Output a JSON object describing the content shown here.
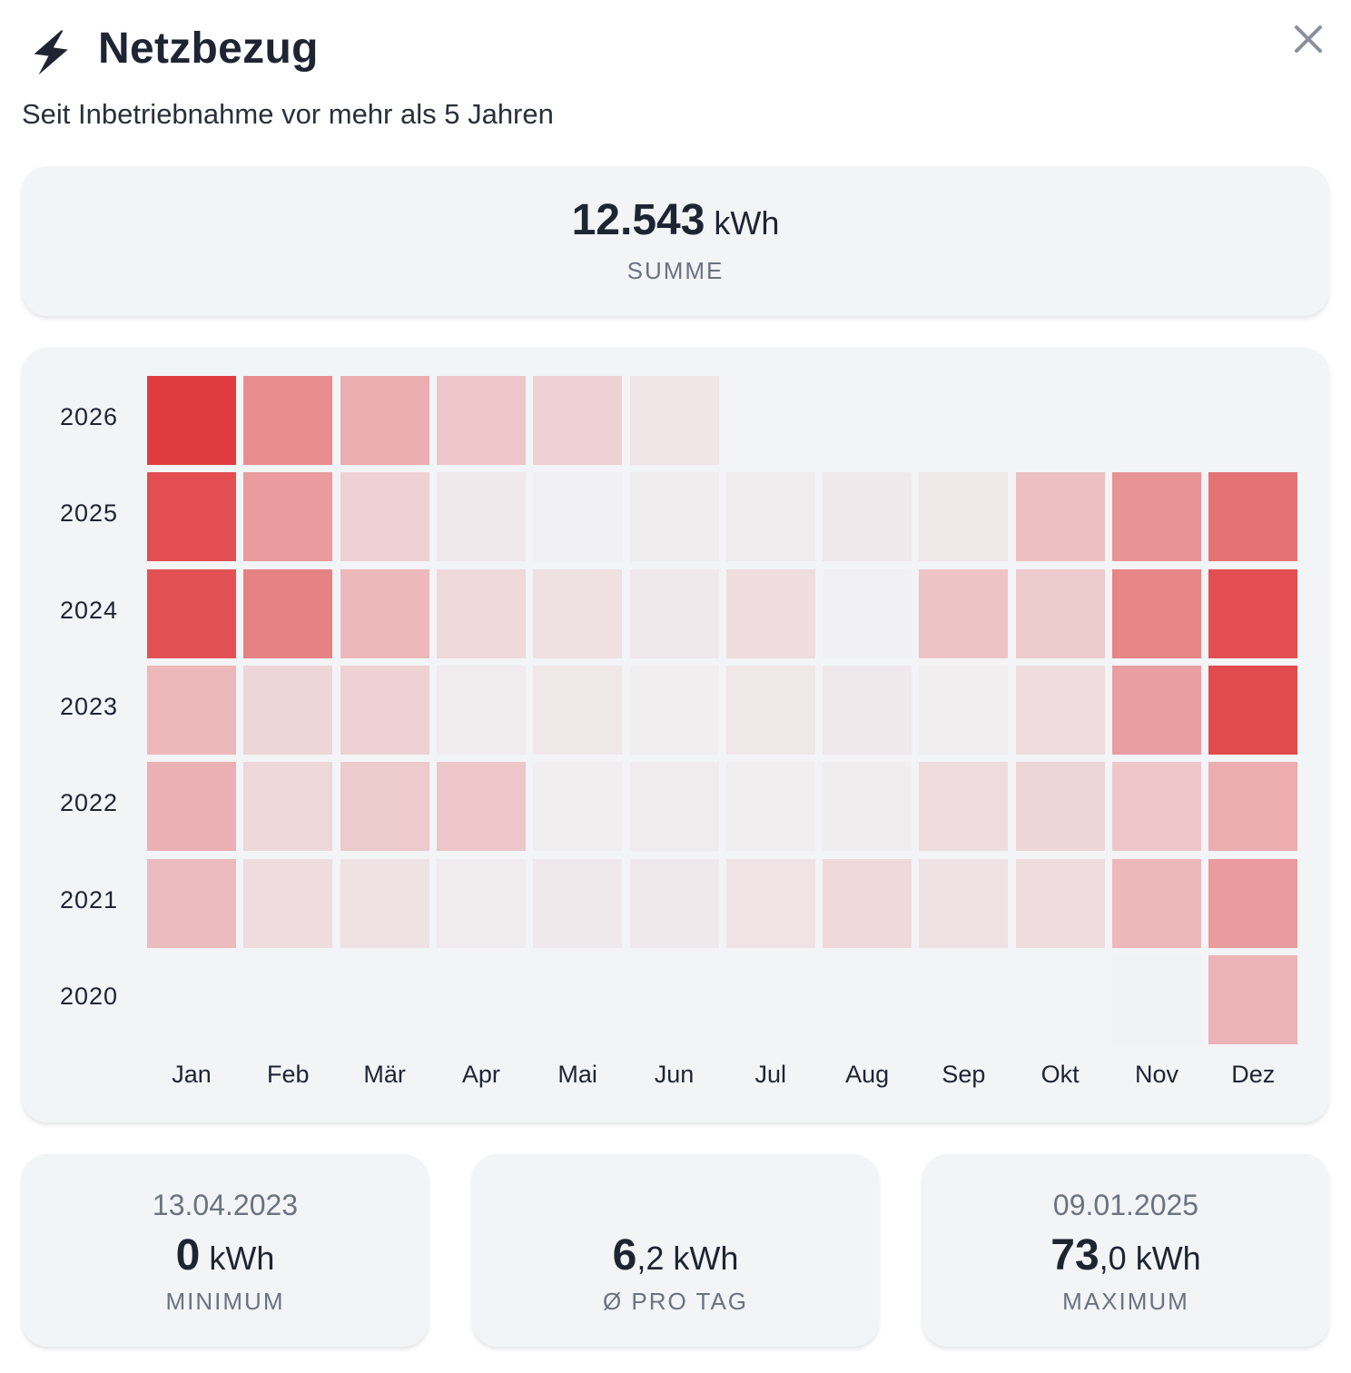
{
  "header": {
    "title": "Netzbezug",
    "subtitle": "Seit Inbetriebnahme vor mehr als 5 Jahren",
    "icon": "lightning-bolt-icon",
    "close_icon": "close-icon"
  },
  "summary": {
    "value_int": "12.543",
    "unit": "kWh",
    "caption": "SUMME"
  },
  "stats": {
    "minimum": {
      "date": "13.04.2023",
      "value_int": "0",
      "value_dec": "",
      "unit": "kWh",
      "caption": "MINIMUM"
    },
    "average": {
      "value_int": "6",
      "value_dec": ",2",
      "unit": "kWh",
      "caption": "Ø PRO TAG"
    },
    "maximum": {
      "date": "09.01.2025",
      "value_int": "73",
      "value_dec": ",0",
      "unit": "kWh",
      "caption": "MAXIMUM"
    }
  },
  "colors": {
    "accent": "#e03c3f",
    "card_bg": "#f2f4f6"
  },
  "chart_data": {
    "type": "heatmap",
    "value_meaning": "relative intensity 0-1 of monthly Netzbezug (read from cell color)",
    "x_categories": [
      "Jan",
      "Feb",
      "Mär",
      "Apr",
      "Mai",
      "Jun",
      "Jul",
      "Aug",
      "Sep",
      "Okt",
      "Nov",
      "Dez"
    ],
    "y_categories": [
      "2026",
      "2025",
      "2024",
      "2023",
      "2022",
      "2021",
      "2020"
    ],
    "values": [
      [
        1.0,
        0.55,
        0.38,
        0.24,
        0.18,
        0.07,
        null,
        null,
        null,
        null,
        null,
        null
      ],
      [
        0.9,
        0.48,
        0.18,
        0.05,
        0.01,
        0.03,
        0.04,
        0.05,
        0.06,
        0.28,
        0.52,
        0.7
      ],
      [
        0.88,
        0.62,
        0.32,
        0.14,
        0.1,
        0.05,
        0.12,
        0.01,
        0.26,
        0.22,
        0.6,
        0.9
      ],
      [
        0.32,
        0.16,
        0.18,
        0.04,
        0.06,
        0.02,
        0.06,
        0.05,
        0.02,
        0.12,
        0.46,
        0.92
      ],
      [
        0.36,
        0.15,
        0.22,
        0.24,
        0.02,
        0.04,
        0.02,
        0.03,
        0.12,
        0.16,
        0.24,
        0.38
      ],
      [
        0.3,
        0.12,
        0.09,
        0.04,
        0.05,
        0.05,
        0.08,
        0.14,
        0.09,
        0.12,
        0.32,
        0.48
      ],
      [
        null,
        null,
        null,
        null,
        null,
        null,
        null,
        null,
        null,
        null,
        0.0,
        0.34
      ]
    ]
  }
}
